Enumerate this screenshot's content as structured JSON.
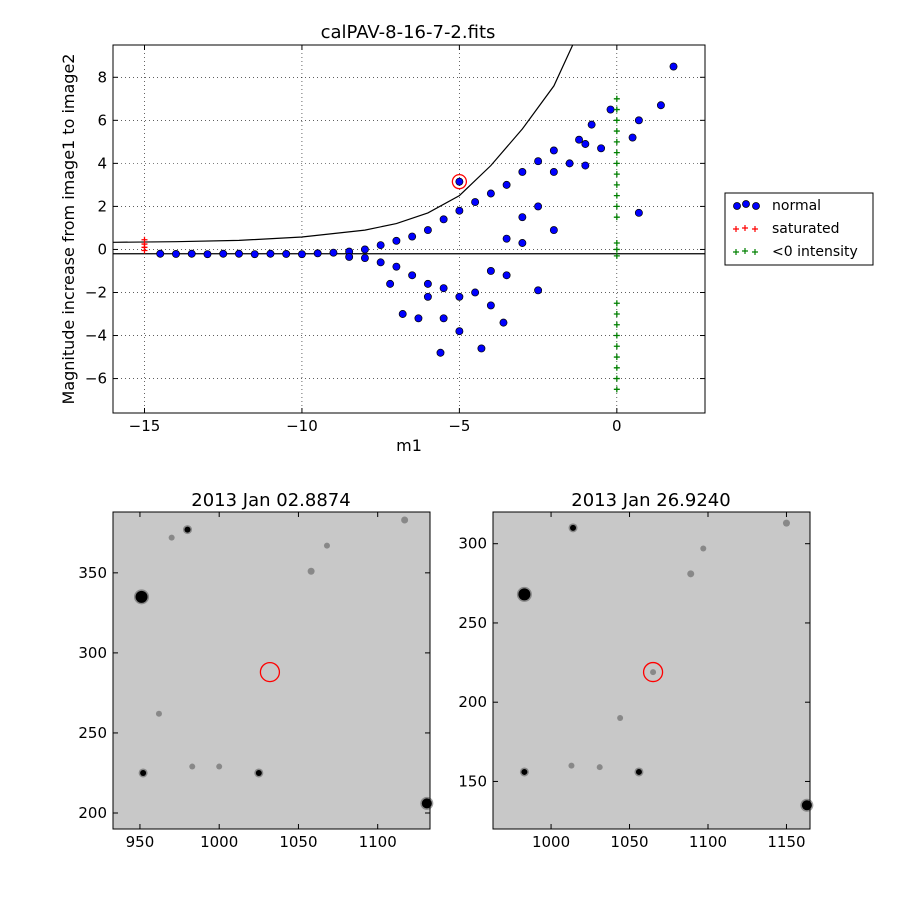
{
  "chart_data": [
    {
      "type": "scatter",
      "title": "calPAV-8-16-7-2.fits",
      "xlabel": "m1",
      "ylabel": "Magnitude increase from image1 to image2",
      "xlim": [
        -16,
        2.8
      ],
      "ylim": [
        -7.6,
        9.5
      ],
      "xticks": [
        -15,
        -10,
        -5,
        0
      ],
      "xtick_labels": [
        "−15",
        "−10",
        "−5",
        "0"
      ],
      "yticks": [
        -6,
        -4,
        -2,
        0,
        2,
        4,
        6,
        8
      ],
      "ytick_labels": [
        "−6",
        "−4",
        "−2",
        "0",
        "2",
        "4",
        "6",
        "8"
      ],
      "grid": true,
      "legend_placement": "outside-right",
      "reference_line_y": -0.2,
      "threshold_curve": [
        [
          -16,
          0.33
        ],
        [
          -14,
          0.36
        ],
        [
          -12,
          0.42
        ],
        [
          -10,
          0.58
        ],
        [
          -8,
          0.9
        ],
        [
          -7,
          1.2
        ],
        [
          -6,
          1.7
        ],
        [
          -5,
          2.5
        ],
        [
          -4,
          3.9
        ],
        [
          -3,
          5.6
        ],
        [
          -2,
          7.6
        ],
        [
          -1.4,
          9.5
        ]
      ],
      "highlight_point": {
        "x": -5.0,
        "y": 3.15
      },
      "series": [
        {
          "name": "normal",
          "color": "#0000ff",
          "marker": "circle",
          "points": [
            [
              -14.5,
              -0.2
            ],
            [
              -14,
              -0.21
            ],
            [
              -13.5,
              -0.2
            ],
            [
              -13,
              -0.22
            ],
            [
              -12.5,
              -0.2
            ],
            [
              -12,
              -0.2
            ],
            [
              -11.5,
              -0.22
            ],
            [
              -11,
              -0.2
            ],
            [
              -10.5,
              -0.21
            ],
            [
              -10,
              -0.22
            ],
            [
              -9.5,
              -0.18
            ],
            [
              -9,
              -0.15
            ],
            [
              -8.5,
              -0.1
            ],
            [
              -8.5,
              -0.35
            ],
            [
              -8,
              0.0
            ],
            [
              -8,
              -0.4
            ],
            [
              -7.5,
              0.2
            ],
            [
              -7.5,
              -0.6
            ],
            [
              -7.2,
              -1.6
            ],
            [
              -7,
              0.4
            ],
            [
              -7,
              -0.8
            ],
            [
              -6.8,
              -3.0
            ],
            [
              -6.5,
              0.6
            ],
            [
              -6.5,
              -1.2
            ],
            [
              -6.3,
              -3.2
            ],
            [
              -6,
              0.9
            ],
            [
              -6,
              -1.6
            ],
            [
              -6,
              -2.2
            ],
            [
              -5.6,
              -4.8
            ],
            [
              -5.5,
              1.4
            ],
            [
              -5.5,
              -1.8
            ],
            [
              -5.5,
              -3.2
            ],
            [
              -5,
              1.8
            ],
            [
              -5,
              -2.2
            ],
            [
              -5,
              -3.8
            ],
            [
              -4.5,
              2.2
            ],
            [
              -4.5,
              -2.0
            ],
            [
              -4.3,
              -4.6
            ],
            [
              -4,
              2.6
            ],
            [
              -4,
              -1.0
            ],
            [
              -4,
              -2.6
            ],
            [
              -3.6,
              -3.4
            ],
            [
              -3.5,
              3.0
            ],
            [
              -3.5,
              0.5
            ],
            [
              -3.5,
              -1.2
            ],
            [
              -3,
              3.6
            ],
            [
              -3,
              1.5
            ],
            [
              -3,
              0.3
            ],
            [
              -2.5,
              4.1
            ],
            [
              -2.5,
              2.0
            ],
            [
              -2.5,
              -1.9
            ],
            [
              -2,
              4.6
            ],
            [
              -2,
              3.6
            ],
            [
              -2,
              0.9
            ],
            [
              -1.5,
              4.0
            ],
            [
              -1.2,
              5.1
            ],
            [
              -1,
              4.9
            ],
            [
              -1,
              3.9
            ],
            [
              -0.8,
              5.8
            ],
            [
              -0.5,
              4.7
            ],
            [
              -0.2,
              6.5
            ],
            [
              0.5,
              5.2
            ],
            [
              0.7,
              6.0
            ],
            [
              0.7,
              1.7
            ],
            [
              1.4,
              6.7
            ],
            [
              1.8,
              8.5
            ]
          ]
        },
        {
          "name": "saturated",
          "color": "#ff0000",
          "marker": "plus",
          "points": [
            [
              -15,
              0.45
            ],
            [
              -15,
              0.25
            ],
            [
              -15,
              0.1
            ],
            [
              -15,
              -0.05
            ]
          ]
        },
        {
          "name": "<0 intensity",
          "color": "#008000",
          "marker": "plus",
          "points": [
            [
              0,
              7.0
            ],
            [
              0,
              6.5
            ],
            [
              0,
              6.0
            ],
            [
              0,
              5.5
            ],
            [
              0,
              5.0
            ],
            [
              0,
              4.5
            ],
            [
              0,
              4.0
            ],
            [
              0,
              3.5
            ],
            [
              0,
              3.0
            ],
            [
              0,
              2.5
            ],
            [
              0,
              2.0
            ],
            [
              0,
              1.5
            ],
            [
              0,
              0.3
            ],
            [
              0,
              0.0
            ],
            [
              0,
              -0.3
            ],
            [
              0,
              -2.5
            ],
            [
              0,
              -3.0
            ],
            [
              0,
              -3.5
            ],
            [
              0,
              -4.0
            ],
            [
              0,
              -4.5
            ],
            [
              0,
              -5.0
            ],
            [
              0,
              -5.5
            ],
            [
              0,
              -6.0
            ],
            [
              0,
              -6.5
            ]
          ]
        }
      ]
    },
    {
      "type": "image",
      "title": "2013 Jan 02.8874",
      "xlim": [
        933,
        1133
      ],
      "ylim": [
        190,
        388
      ],
      "xticks": [
        950,
        1000,
        1050,
        1100
      ],
      "yticks": [
        200,
        250,
        300,
        350
      ],
      "target": {
        "x": 1032,
        "y": 288
      },
      "stars": [
        [
          951,
          335,
          6
        ],
        [
          980,
          377,
          3
        ],
        [
          1025,
          225,
          3
        ],
        [
          952,
          225,
          3
        ],
        [
          1131,
          206,
          5
        ],
        [
          1058,
          351,
          2
        ],
        [
          1117,
          383,
          2
        ],
        [
          983,
          229,
          1.5
        ],
        [
          1000,
          229,
          1.5
        ],
        [
          970,
          372,
          1.5
        ],
        [
          1068,
          367,
          1.5
        ],
        [
          962,
          262,
          1.5
        ]
      ]
    },
    {
      "type": "image",
      "title": "2013 Jan 26.9240",
      "xlim": [
        963,
        1165
      ],
      "ylim": [
        120,
        320
      ],
      "xticks": [
        1000,
        1050,
        1100,
        1150
      ],
      "yticks": [
        150,
        200,
        250,
        300
      ],
      "target": {
        "x": 1065,
        "y": 219
      },
      "stars": [
        [
          983,
          268,
          6
        ],
        [
          1014,
          310,
          3
        ],
        [
          1056,
          156,
          3
        ],
        [
          983,
          156,
          3
        ],
        [
          1163,
          135,
          5
        ],
        [
          1089,
          281,
          2
        ],
        [
          1150,
          313,
          2
        ],
        [
          1013,
          160,
          1.5
        ],
        [
          1031,
          159,
          1.5
        ],
        [
          1044,
          190,
          1.5
        ],
        [
          1097,
          297,
          1.5
        ],
        [
          1065,
          219,
          1.5
        ]
      ]
    }
  ]
}
